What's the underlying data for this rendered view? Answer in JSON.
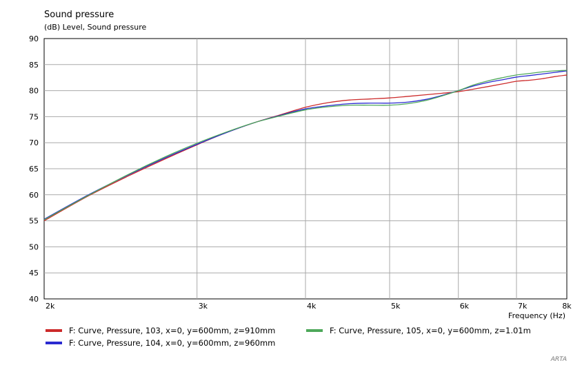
{
  "chart_data": {
    "type": "line",
    "title": "Sound pressure",
    "ylabel": "(dB)  Level, Sound pressure",
    "xlabel": "Frequency  (Hz)",
    "x_scale": "log",
    "xlim": [
      2000,
      8000
    ],
    "ylim": [
      40,
      90
    ],
    "grid": true,
    "y_ticks": [
      {
        "value": 40,
        "label": "40"
      },
      {
        "value": 45,
        "label": "45"
      },
      {
        "value": 50,
        "label": "50"
      },
      {
        "value": 55,
        "label": "55"
      },
      {
        "value": 60,
        "label": "60"
      },
      {
        "value": 65,
        "label": "65"
      },
      {
        "value": 70,
        "label": "70"
      },
      {
        "value": 75,
        "label": "75"
      },
      {
        "value": 80,
        "label": "80"
      },
      {
        "value": 85,
        "label": "85"
      },
      {
        "value": 90,
        "label": "90"
      }
    ],
    "x_ticks": [
      {
        "value": 2000,
        "label": "2k"
      },
      {
        "value": 3000,
        "label": "3k"
      },
      {
        "value": 4000,
        "label": "4k"
      },
      {
        "value": 5000,
        "label": "5k"
      },
      {
        "value": 6000,
        "label": "6k"
      },
      {
        "value": 7000,
        "label": "7k"
      },
      {
        "value": 8000,
        "label": "8k"
      }
    ],
    "series": [
      {
        "name": "F: Curve, Pressure, 103, x=0, y=600mm, z=910mm",
        "color": "#cc2a2a",
        "x": [
          2000,
          2250,
          2500,
          2750,
          3000,
          3250,
          3500,
          3750,
          4000,
          4250,
          4500,
          4750,
          5000,
          5250,
          5500,
          5750,
          6000,
          6250,
          6500,
          6750,
          7000,
          7250,
          7500,
          7750,
          8000
        ],
        "y": [
          55.0,
          59.8,
          63.6,
          66.8,
          69.6,
          72.0,
          73.9,
          75.4,
          76.8,
          77.7,
          78.2,
          78.4,
          78.6,
          78.9,
          79.2,
          79.5,
          79.8,
          80.3,
          80.8,
          81.3,
          81.8,
          82.0,
          82.3,
          82.7,
          83.0
        ]
      },
      {
        "name": "F: Curve, Pressure, 104, x=0, y=600mm, z=960mm",
        "color": "#2a2ad0",
        "x": [
          2000,
          2250,
          2500,
          2750,
          3000,
          3250,
          3500,
          3750,
          4000,
          4250,
          4500,
          4750,
          5000,
          5250,
          5500,
          5750,
          6000,
          6250,
          6500,
          6750,
          7000,
          7250,
          7500,
          7750,
          8000
        ],
        "y": [
          55.3,
          60.0,
          63.8,
          67.0,
          69.7,
          72.0,
          73.9,
          75.3,
          76.5,
          77.1,
          77.5,
          77.6,
          77.6,
          77.8,
          78.3,
          79.1,
          80.0,
          80.9,
          81.6,
          82.1,
          82.6,
          82.9,
          83.2,
          83.5,
          83.8
        ]
      },
      {
        "name": "F: Curve, Pressure, 105, x=0, y=600mm, z=1.01m",
        "color": "#4ea85a",
        "x": [
          2000,
          2250,
          2500,
          2750,
          3000,
          3250,
          3500,
          3750,
          4000,
          4250,
          4500,
          4750,
          5000,
          5250,
          5500,
          5750,
          6000,
          6250,
          6500,
          6750,
          7000,
          7250,
          7500,
          7750,
          8000
        ],
        "y": [
          55.2,
          59.9,
          63.9,
          67.2,
          69.9,
          72.1,
          73.9,
          75.2,
          76.3,
          76.9,
          77.2,
          77.2,
          77.2,
          77.5,
          78.1,
          79.0,
          80.0,
          81.1,
          81.9,
          82.5,
          83.0,
          83.3,
          83.6,
          83.8,
          83.9
        ]
      }
    ]
  },
  "watermark": "ARTA"
}
